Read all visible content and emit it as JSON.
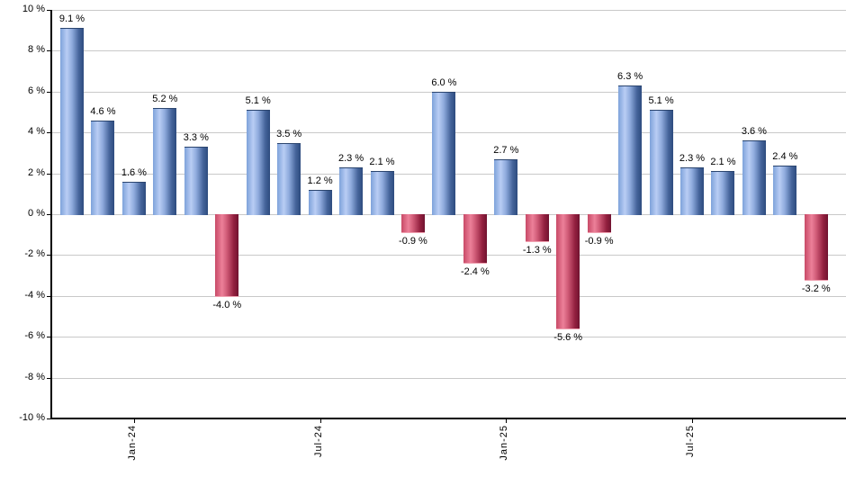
{
  "chart_data": {
    "type": "bar",
    "title": "",
    "xlabel": "",
    "ylabel": "",
    "ylim": [
      -10,
      10
    ],
    "grid": true,
    "legend": "none",
    "points": [
      {
        "value": 9.1,
        "label": "9.1 %"
      },
      {
        "value": 4.6,
        "label": "4.6 %"
      },
      {
        "value": 1.6,
        "label": "1.6 %"
      },
      {
        "value": 5.2,
        "label": "5.2 %"
      },
      {
        "value": 3.3,
        "label": "3.3 %"
      },
      {
        "value": -4.0,
        "label": "-4.0 %"
      },
      {
        "value": 5.1,
        "label": "5.1 %"
      },
      {
        "value": 3.5,
        "label": "3.5 %"
      },
      {
        "value": 1.2,
        "label": "1.2 %"
      },
      {
        "value": 2.3,
        "label": "2.3 %"
      },
      {
        "value": 2.1,
        "label": "2.1 %"
      },
      {
        "value": -0.9,
        "label": "-0.9 %"
      },
      {
        "value": 6.0,
        "label": "6.0 %"
      },
      {
        "value": -2.4,
        "label": "-2.4 %"
      },
      {
        "value": 2.7,
        "label": "2.7 %"
      },
      {
        "value": -1.3,
        "label": "-1.3 %"
      },
      {
        "value": -5.6,
        "label": "-5.6 %"
      },
      {
        "value": -0.9,
        "label": "-0.9 %"
      },
      {
        "value": 6.3,
        "label": "6.3 %"
      },
      {
        "value": 5.1,
        "label": "5.1 %"
      },
      {
        "value": 2.3,
        "label": "2.3 %"
      },
      {
        "value": 2.1,
        "label": "2.1 %"
      },
      {
        "value": 3.6,
        "label": "3.6 %"
      },
      {
        "value": 2.4,
        "label": "2.4 %"
      },
      {
        "value": -3.2,
        "label": "-3.2 %"
      }
    ],
    "x_ticks": [
      {
        "bar_index": 2,
        "label": "Jan-24"
      },
      {
        "bar_index": 8,
        "label": "Jul-24"
      },
      {
        "bar_index": 14,
        "label": "Jan-25"
      },
      {
        "bar_index": 20,
        "label": "Jul-25"
      }
    ],
    "y_ticks": [
      {
        "value": 10,
        "label": "10 %"
      },
      {
        "value": 8,
        "label": "8 %"
      },
      {
        "value": 6,
        "label": "6 %"
      },
      {
        "value": 4,
        "label": "4 %"
      },
      {
        "value": 2,
        "label": "2 %"
      },
      {
        "value": 0,
        "label": "0 %"
      },
      {
        "value": -2,
        "label": "-2 %"
      },
      {
        "value": -4,
        "label": "-4 %"
      },
      {
        "value": -6,
        "label": "-6 %"
      },
      {
        "value": -8,
        "label": "-8 %"
      },
      {
        "value": -10,
        "label": "-10 %"
      }
    ],
    "colors": {
      "positive_bar": "#7ea2da",
      "positive_bar_dark": "#2e4c7e",
      "positive_bar_highlight": "#b9cdf4",
      "negative_bar": "#c84a67",
      "negative_bar_dark": "#701330",
      "negative_bar_highlight": "#ec8099",
      "gridline": "#c9c9c9",
      "axis": "#000000",
      "label_text": "#000000",
      "background": "#ffffff"
    }
  }
}
